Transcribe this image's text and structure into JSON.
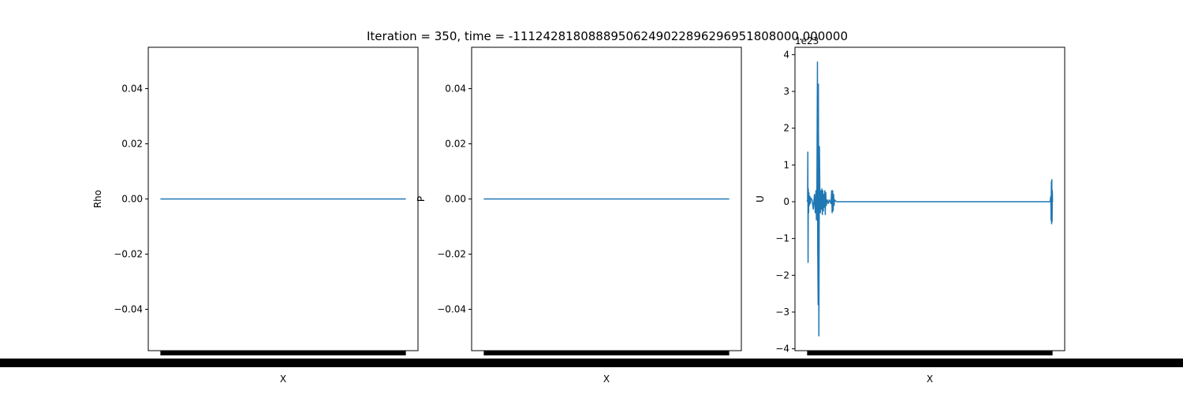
{
  "figure": {
    "title": "Iteration = 350, time = -11124281808889506249022896296951808000.000000",
    "line_color": "#1f77b4",
    "bottom_band_color": "#000000"
  },
  "chart_data": [
    {
      "type": "line",
      "title": "",
      "xlabel": "X",
      "ylabel": "Rho",
      "ylim": [
        -0.055,
        0.055
      ],
      "yticks": [
        -0.04,
        -0.02,
        0.0,
        0.02,
        0.04
      ],
      "ytick_labels": [
        "−0.04",
        "−0.02",
        "0.00",
        "0.02",
        "0.04"
      ],
      "offset_text": "",
      "xlim": [
        0,
        1
      ],
      "x_tick_labels_rendered_as_black_band": true,
      "series": [
        {
          "x": [
            0.0,
            1.0
          ],
          "y": [
            0,
            0
          ]
        }
      ]
    },
    {
      "type": "line",
      "title": "",
      "xlabel": "X",
      "ylabel": "P",
      "ylim": [
        -0.055,
        0.055
      ],
      "yticks": [
        -0.04,
        -0.02,
        0.0,
        0.02,
        0.04
      ],
      "ytick_labels": [
        "−0.04",
        "−0.02",
        "0.00",
        "0.02",
        "0.04"
      ],
      "offset_text": "",
      "xlim": [
        0,
        1
      ],
      "x_tick_labels_rendered_as_black_band": true,
      "series": [
        {
          "x": [
            0.0,
            1.0
          ],
          "y": [
            0,
            0
          ]
        }
      ]
    },
    {
      "type": "line",
      "title": "",
      "xlabel": "X",
      "ylabel": "U",
      "ylim": [
        -4.05,
        4.2
      ],
      "yticks": [
        -4,
        -3,
        -2,
        -1,
        0,
        1,
        2,
        3,
        4
      ],
      "ytick_labels": [
        "−4",
        "−3",
        "−2",
        "−1",
        "0",
        "1",
        "2",
        "3",
        "4"
      ],
      "offset_text": "1e23",
      "xlim": [
        0,
        1
      ],
      "x_tick_labels_rendered_as_black_band": true,
      "series": [
        {
          "x": [
            0.0,
            0.002,
            0.003,
            0.004,
            0.005,
            0.006,
            0.007,
            0.009,
            0.011,
            0.013,
            0.015,
            0.02,
            0.025,
            0.03,
            0.033,
            0.036,
            0.038,
            0.04,
            0.042,
            0.043,
            0.045,
            0.046,
            0.048,
            0.05,
            0.052,
            0.054,
            0.056,
            0.058,
            0.06,
            0.062,
            0.064,
            0.066,
            0.068,
            0.07,
            0.072,
            0.074,
            0.076,
            0.078,
            0.082,
            0.086,
            0.09,
            0.094,
            0.097,
            0.1,
            0.102,
            0.104,
            0.106,
            0.108,
            0.11,
            0.112,
            0.12,
            0.2,
            0.3,
            0.33,
            0.34,
            0.36,
            0.4,
            0.6,
            0.64,
            0.68,
            0.7,
            0.8,
            0.9,
            0.99,
            0.993,
            0.994,
            0.995,
            0.996,
            0.997,
            0.998,
            0.999,
            1.0
          ],
          "y": [
            0.0,
            0.05,
            1.35,
            -1.65,
            0.35,
            -0.3,
            0.25,
            -0.1,
            0.15,
            -0.05,
            0.1,
            0.05,
            -0.2,
            0.2,
            -0.3,
            0.3,
            -0.5,
            0.4,
            3.8,
            -1.2,
            -2.8,
            3.2,
            -3.65,
            1.5,
            0.2,
            -0.3,
            0.3,
            -0.2,
            0.35,
            -0.35,
            0.3,
            -0.25,
            0.2,
            -0.15,
            0.3,
            -0.35,
            0.25,
            -0.1,
            0.05,
            -0.05,
            0.05,
            0.0,
            -0.05,
            0.3,
            -0.3,
            0.3,
            -0.25,
            0.2,
            -0.1,
            0.05,
            0.0,
            0.0,
            0.0,
            0.0,
            0.0,
            0.0,
            0.0,
            0.0,
            0.0,
            0.0,
            0.0,
            0.0,
            0.0,
            0.0,
            0.15,
            -0.5,
            0.55,
            -0.6,
            0.6,
            -0.55,
            0.3,
            0.0
          ]
        }
      ]
    }
  ]
}
